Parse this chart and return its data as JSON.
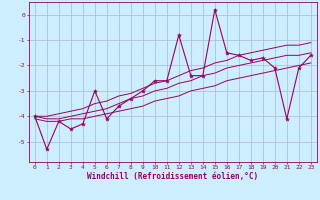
{
  "xlabel": "Windchill (Refroidissement éolien,°C)",
  "ylabel": "",
  "bg_color": "#cceeff",
  "line_color": "#990066",
  "grid_color": "#aabbcc",
  "x_data": [
    0,
    1,
    2,
    3,
    4,
    5,
    6,
    7,
    8,
    9,
    10,
    11,
    12,
    13,
    14,
    15,
    16,
    17,
    18,
    19,
    20,
    21,
    22,
    23
  ],
  "y_main": [
    -4.0,
    -5.3,
    -4.2,
    -4.5,
    -4.3,
    -3.0,
    -4.1,
    -3.6,
    -3.3,
    -3.0,
    -2.6,
    -2.6,
    -0.8,
    -2.4,
    -2.4,
    0.2,
    -1.5,
    -1.6,
    -1.8,
    -1.7,
    -2.1,
    -4.1,
    -2.1,
    -1.6
  ],
  "y_line1": [
    -4.0,
    -4.1,
    -4.1,
    -4.0,
    -3.9,
    -3.8,
    -3.7,
    -3.5,
    -3.3,
    -3.2,
    -3.0,
    -2.9,
    -2.7,
    -2.6,
    -2.4,
    -2.3,
    -2.1,
    -2.0,
    -1.9,
    -1.8,
    -1.7,
    -1.6,
    -1.6,
    -1.5
  ],
  "y_line2": [
    -4.0,
    -4.0,
    -3.9,
    -3.8,
    -3.7,
    -3.5,
    -3.4,
    -3.2,
    -3.1,
    -2.9,
    -2.7,
    -2.6,
    -2.4,
    -2.2,
    -2.1,
    -1.9,
    -1.8,
    -1.6,
    -1.5,
    -1.4,
    -1.3,
    -1.2,
    -1.2,
    -1.1
  ],
  "y_line3": [
    -4.1,
    -4.2,
    -4.2,
    -4.1,
    -4.1,
    -4.0,
    -3.9,
    -3.8,
    -3.7,
    -3.6,
    -3.4,
    -3.3,
    -3.2,
    -3.0,
    -2.9,
    -2.8,
    -2.6,
    -2.5,
    -2.4,
    -2.3,
    -2.2,
    -2.1,
    -2.0,
    -1.9
  ],
  "xlim": [
    -0.5,
    23.5
  ],
  "ylim": [
    -5.8,
    0.5
  ],
  "yticks": [
    0,
    -1,
    -2,
    -3,
    -4,
    -5
  ],
  "xticks": [
    0,
    1,
    2,
    3,
    4,
    5,
    6,
    7,
    8,
    9,
    10,
    11,
    12,
    13,
    14,
    15,
    16,
    17,
    18,
    19,
    20,
    21,
    22,
    23
  ],
  "xlabel_fontsize": 5.5,
  "tick_fontsize": 4.5,
  "lw_main": 0.8,
  "lw_envelope": 0.7,
  "marker_size": 3.0
}
